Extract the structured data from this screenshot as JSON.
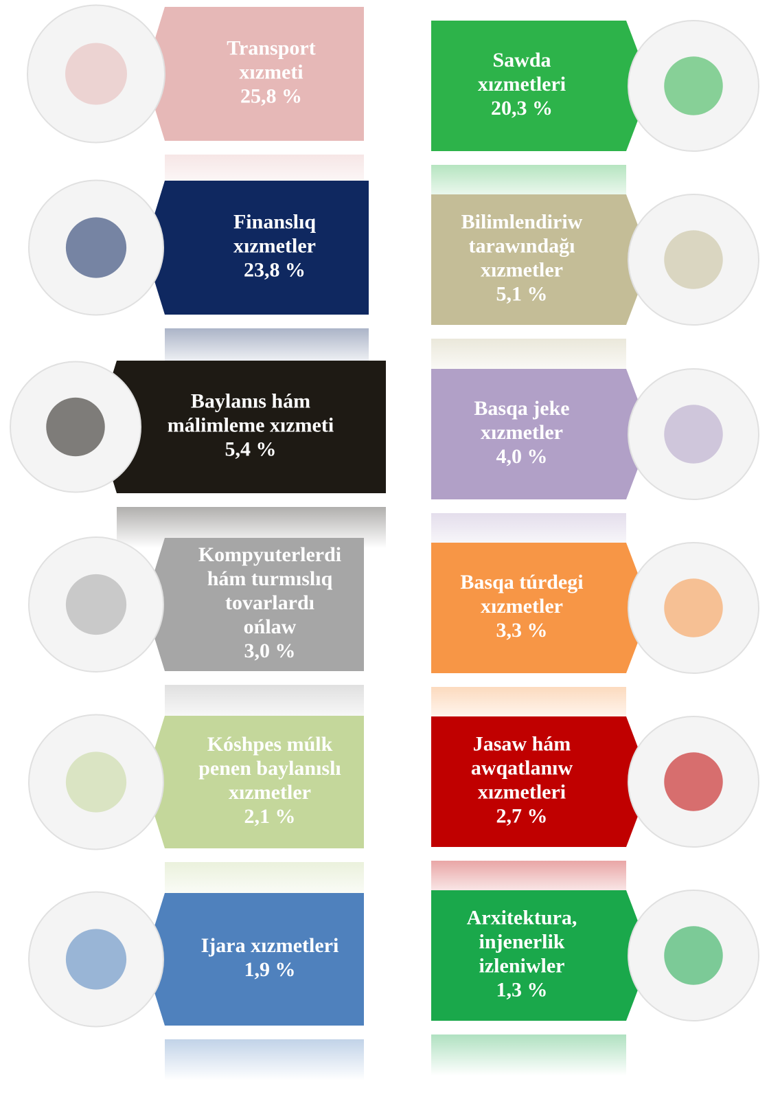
{
  "left": [
    {
      "lines": [
        "Transport",
        "xızmeti"
      ],
      "value": "25,8 %"
    },
    {
      "lines": [
        "Finanslıq",
        "xızmetler"
      ],
      "value": "23,8 %"
    },
    {
      "lines": [
        "Baylanıs hám",
        "málimleme xızmeti"
      ],
      "value": "5,4 %"
    },
    {
      "lines": [
        "Kompyuterlerdi",
        "hám turmıslıq",
        "tovarlardı",
        "ońlaw"
      ],
      "value": "3,0 %"
    },
    {
      "lines": [
        "Kóshpes múlk",
        "penen baylanıslı",
        "xızmetler"
      ],
      "value": "2,1 %"
    },
    {
      "lines": [
        "Ijara xızmetleri"
      ],
      "value": "1,9 %"
    }
  ],
  "right": [
    {
      "lines": [
        "Sawda",
        "xızmetleri"
      ],
      "value": "20,3 %"
    },
    {
      "lines": [
        "Bilimlendiriw",
        "tarawındağı",
        "xızmetler"
      ],
      "value": "5,1 %"
    },
    {
      "lines": [
        "Basqa jeke",
        "xızmetler"
      ],
      "value": "4,0 %"
    },
    {
      "lines": [
        "Basqa túrdegi",
        "xızmetler"
      ],
      "value": "3,3 %"
    },
    {
      "lines": [
        "Jasaw hám",
        "awqatlanıw",
        "xızmetleri"
      ],
      "value": "2,7 %"
    },
    {
      "lines": [
        "Arxitektura,",
        "injenerlik",
        "izleniwler"
      ],
      "value": "1,3 %"
    }
  ]
}
